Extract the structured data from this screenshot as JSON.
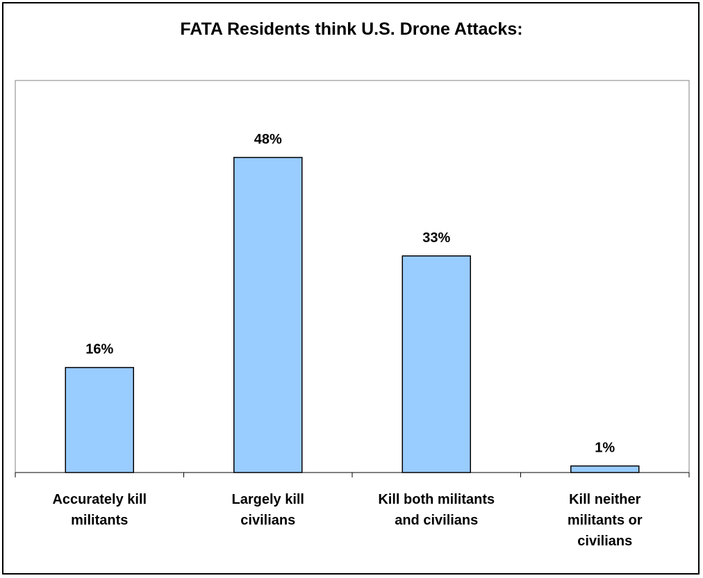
{
  "chart_data": {
    "type": "bar",
    "title": "FATA Residents think U.S. Drone Attacks:",
    "categories": [
      [
        "Accurately kill",
        "militants"
      ],
      [
        "Largely kill",
        "civilians"
      ],
      [
        "Kill both militants",
        "and civilians"
      ],
      [
        "Kill neither",
        "militants or",
        "civilians"
      ]
    ],
    "values": [
      16,
      48,
      33,
      1
    ],
    "value_labels": [
      "16%",
      "48%",
      "33%",
      "1%"
    ],
    "ylim": [
      0,
      60
    ],
    "grid": false,
    "legend": "none",
    "colors": {
      "bar_fill": "#99ccff",
      "bar_stroke": "#000000",
      "plot_border": "#808080"
    }
  }
}
